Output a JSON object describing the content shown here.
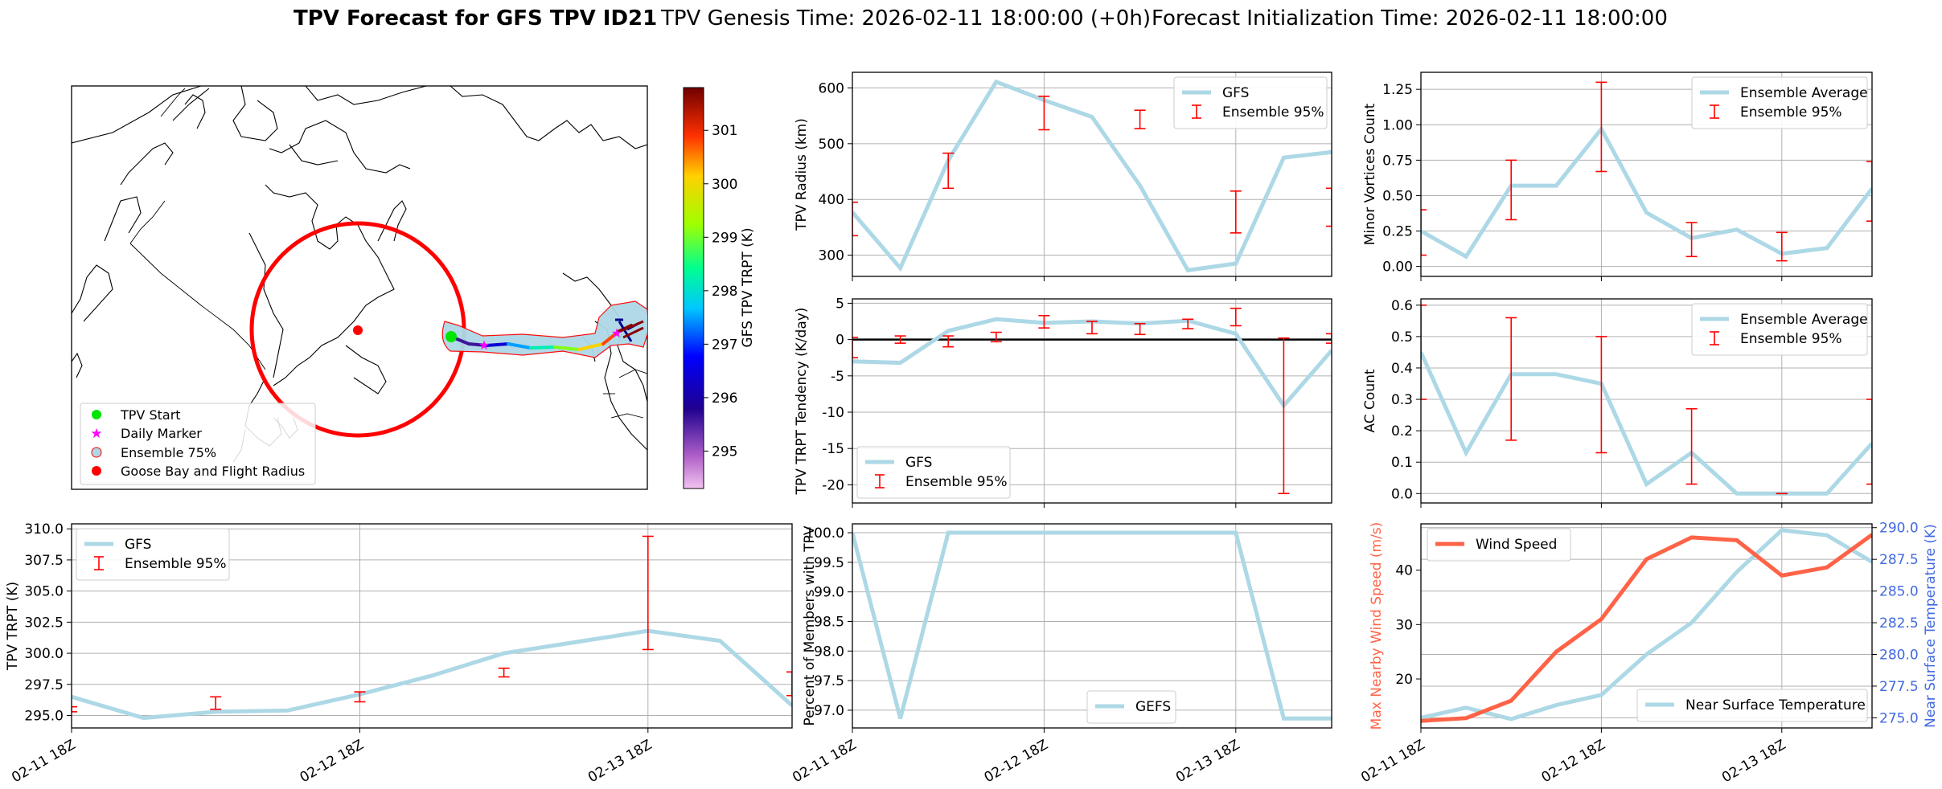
{
  "figure": {
    "title_bold": "TPV Forecast for GFS TPV ID21",
    "title_genesis": "TPV Genesis Time: 2026-02-11 18:00:00 (+0h)",
    "title_init": "Forecast Initialization Time: 2026-02-11 18:00:00"
  },
  "colors": {
    "series": "#add8e6",
    "errorbar": "#ff0000",
    "wind": "#ff6347",
    "temp_axis": "#4169e1",
    "zero_line": "#000000",
    "grid": "#b0b0b0"
  },
  "time_ticks": [
    "02-11 18Z",
    "02-12 18Z",
    "02-13 18Z"
  ],
  "map": {
    "legend": [
      "TPV Start",
      "Daily Marker",
      "Ensemble 75%",
      "Goose Bay and Flight Radius"
    ],
    "colorbar_label": "GFS TPV TRPT (K)",
    "colorbar_ticks": [
      "295",
      "296",
      "297",
      "298",
      "299",
      "300",
      "301"
    ],
    "colorbar_range": [
      294.3,
      301.8
    ],
    "track_trpt": [
      295.6,
      296.4,
      297.5,
      298.2,
      299.1,
      300.1,
      300.8,
      301.6
    ]
  },
  "chart_data": [
    {
      "id": "radius",
      "type": "line",
      "title": "",
      "ylabel": "TPV Radius (km)",
      "legend": [
        "GFS",
        "Ensemble 95%"
      ],
      "legend_position": "top-right",
      "x": [
        0,
        1,
        2,
        3,
        4,
        5,
        6,
        7,
        8,
        9,
        10
      ],
      "xlim": [
        0,
        10
      ],
      "ylim": [
        262,
        628
      ],
      "yticks": [
        300,
        400,
        500,
        600
      ],
      "values": [
        377,
        277,
        470,
        611,
        578,
        548,
        425,
        273,
        285,
        475,
        485
      ],
      "error_bars": [
        [
          0,
          335,
          395
        ],
        [
          2,
          420,
          483
        ],
        [
          4,
          525,
          585
        ],
        [
          6,
          527,
          560
        ],
        [
          8,
          340,
          415
        ],
        [
          10,
          352,
          420
        ]
      ]
    },
    {
      "id": "minor",
      "type": "line",
      "ylabel": "Minor Vortices Count",
      "legend": [
        "Ensemble Average",
        "Ensemble 95%"
      ],
      "legend_position": "top-right",
      "x": [
        0,
        1,
        2,
        3,
        4,
        5,
        6,
        7,
        8,
        9,
        10
      ],
      "xlim": [
        0,
        10
      ],
      "ylim": [
        -0.07,
        1.37
      ],
      "yticks": [
        0.0,
        0.25,
        0.5,
        0.75,
        1.0,
        1.25
      ],
      "values": [
        0.25,
        0.07,
        0.57,
        0.57,
        0.97,
        0.38,
        0.2,
        0.26,
        0.09,
        0.13,
        0.55
      ],
      "error_bars": [
        [
          0,
          0.08,
          0.4
        ],
        [
          2,
          0.33,
          0.75
        ],
        [
          4,
          0.67,
          1.3
        ],
        [
          6,
          0.07,
          0.31
        ],
        [
          8,
          0.04,
          0.24
        ],
        [
          10,
          0.32,
          0.74
        ]
      ]
    },
    {
      "id": "tendency",
      "type": "line",
      "ylabel": "TPV TRPT Tendency (K/day)",
      "legend": [
        "GFS",
        "Ensemble 95%"
      ],
      "legend_position": "bottom-left",
      "x": [
        0,
        1,
        2,
        3,
        4,
        5,
        6,
        7,
        8,
        9,
        10
      ],
      "xlim": [
        0,
        10
      ],
      "ylim": [
        -22.5,
        5.6
      ],
      "yticks": [
        -20,
        -15,
        -10,
        -5,
        0,
        5
      ],
      "values": [
        -3.0,
        -3.2,
        1.2,
        2.8,
        2.3,
        2.5,
        2.2,
        2.6,
        0.8,
        -9.1,
        -1.5
      ],
      "error_bars": [
        [
          0,
          -2.5,
          0.3
        ],
        [
          1,
          -0.5,
          0.5
        ],
        [
          2,
          -1.0,
          0.5
        ],
        [
          3,
          -0.3,
          1.0
        ],
        [
          4,
          1.6,
          3.3
        ],
        [
          5,
          0.8,
          2.5
        ],
        [
          6,
          0.7,
          2.2
        ],
        [
          7,
          1.5,
          2.8
        ],
        [
          8,
          1.9,
          4.3
        ],
        [
          9,
          -21.2,
          0.2
        ],
        [
          10,
          -0.5,
          0.8
        ]
      ]
    },
    {
      "id": "ac",
      "type": "line",
      "ylabel": "AC Count",
      "legend": [
        "Ensemble Average",
        "Ensemble 95%"
      ],
      "legend_position": "top-right",
      "x": [
        0,
        1,
        2,
        3,
        4,
        5,
        6,
        7,
        8,
        9,
        10
      ],
      "xlim": [
        0,
        10
      ],
      "ylim": [
        -0.03,
        0.62
      ],
      "yticks": [
        0.0,
        0.1,
        0.2,
        0.3,
        0.4,
        0.5,
        0.6
      ],
      "values": [
        0.45,
        0.13,
        0.38,
        0.38,
        0.35,
        0.03,
        0.13,
        0.0,
        0.0,
        0.0,
        0.16
      ],
      "error_bars": [
        [
          0,
          0.3,
          0.6
        ],
        [
          2,
          0.17,
          0.56
        ],
        [
          4,
          0.13,
          0.5
        ],
        [
          6,
          0.03,
          0.27
        ],
        [
          8,
          0.0,
          0.0
        ],
        [
          10,
          0.03,
          0.3
        ]
      ]
    },
    {
      "id": "trpt",
      "type": "line",
      "ylabel": "TPV TRPT (K)",
      "legend": [
        "GFS",
        "Ensemble 95%"
      ],
      "legend_position": "top-left",
      "x": [
        0,
        1,
        2,
        3,
        4,
        5,
        6,
        7,
        8,
        9,
        10
      ],
      "xlim": [
        0,
        10
      ],
      "ylim": [
        294.0,
        310.4
      ],
      "yticks": [
        295.0,
        297.5,
        300.0,
        302.5,
        305.0,
        307.5,
        310.0
      ],
      "values": [
        296.5,
        294.8,
        295.3,
        295.4,
        296.7,
        298.2,
        300.0,
        300.9,
        301.8,
        301.0,
        295.8
      ],
      "error_bars": [
        [
          0,
          295.3,
          295.7
        ],
        [
          2,
          295.5,
          296.5
        ],
        [
          4,
          296.1,
          296.9
        ],
        [
          6,
          298.1,
          298.8
        ],
        [
          8,
          300.3,
          309.4
        ],
        [
          10,
          296.6,
          298.5
        ]
      ]
    },
    {
      "id": "members",
      "type": "line",
      "ylabel": "Percent of Members with TPV",
      "legend": [
        "GEFS"
      ],
      "legend_position": "bottom-center",
      "x": [
        0,
        1,
        2,
        3,
        4,
        5,
        6,
        7,
        8,
        9,
        10
      ],
      "xlim": [
        0,
        10
      ],
      "ylim": [
        96.7,
        100.15
      ],
      "yticks": [
        97.0,
        97.5,
        98.0,
        98.5,
        99.0,
        99.5,
        100.0
      ],
      "values": [
        100.0,
        96.86,
        100.0,
        100.0,
        100.0,
        100.0,
        100.0,
        100.0,
        100.0,
        96.86,
        96.86
      ]
    },
    {
      "id": "wind_temp",
      "type": "line",
      "ylabel": "Max Nearby Wind Speed (m/s)",
      "ylabel_right": "Near Surface Temperature (K)",
      "legend": [
        "Wind Speed",
        "Near Surface Temperature"
      ],
      "legend_position": "top-left / bottom-right",
      "x": [
        0,
        1,
        2,
        3,
        4,
        5,
        6,
        7,
        8,
        9,
        10
      ],
      "xlim": [
        0,
        10
      ],
      "ylim": [
        11.0,
        48.5
      ],
      "yticks": [
        20,
        30,
        40
      ],
      "ylim_right": [
        274.2,
        290.3
      ],
      "yticks_right": [
        275.0,
        277.5,
        280.0,
        282.5,
        285.0,
        287.5,
        290.0
      ],
      "series": [
        {
          "name": "Wind Speed",
          "axis": "left",
          "values": [
            12.3,
            12.8,
            16.0,
            25.0,
            31.0,
            42.0,
            46.0,
            45.5,
            39.0,
            40.5,
            46.5
          ]
        },
        {
          "name": "Near Surface Temperature",
          "axis": "right",
          "values": [
            275.0,
            275.8,
            274.9,
            276.0,
            276.8,
            280.0,
            282.5,
            286.5,
            289.8,
            289.4,
            287.3
          ]
        }
      ]
    }
  ]
}
